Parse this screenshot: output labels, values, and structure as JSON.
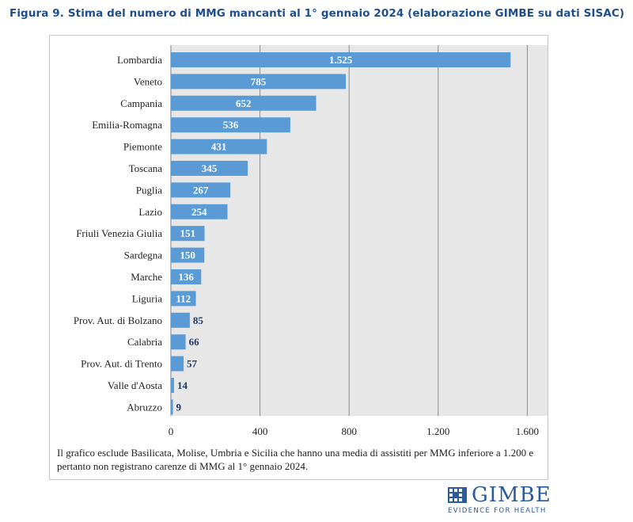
{
  "figure": {
    "title": "Figura 9. Stima del numero di MMG mancanti al 1° gennaio 2024 (elaborazione GIMBE su dati SISAC)",
    "note": "Il grafico esclude Basilicata, Molise, Umbria e Sicilia che hanno una media di assistiti per MMG inferiore a 1.200 e pertanto non registrano carenze di MMG al 1° gennaio 2024."
  },
  "logo": {
    "name": "GIMBE",
    "tagline": "EVIDENCE FOR HEALTH",
    "color": "#2b5b99"
  },
  "colors": {
    "title": "#1f4e8c",
    "bar": "#5b9bd5",
    "plot_background": "#e7e7e7",
    "bar_label": "#ffffff",
    "outside_label": "#1f3864"
  },
  "chart_data": {
    "type": "bar",
    "orientation": "horizontal",
    "categories": [
      "Lombardia",
      "Veneto",
      "Campania",
      "Emilia-Romagna",
      "Piemonte",
      "Toscana",
      "Puglia",
      "Lazio",
      "Friuli Venezia Giulia",
      "Sardegna",
      "Marche",
      "Liguria",
      "Prov. Aut. di Bolzano",
      "Calabria",
      "Prov. Aut. di Trento",
      "Valle d'Aosta",
      "Abruzzo"
    ],
    "values": [
      1525,
      785,
      652,
      536,
      431,
      345,
      267,
      254,
      151,
      150,
      136,
      112,
      85,
      66,
      57,
      14,
      9
    ],
    "data_labels": [
      "1.525",
      "785",
      "652",
      "536",
      "431",
      "345",
      "267",
      "254",
      "151",
      "150",
      "136",
      "112",
      "85",
      "66",
      "57",
      "14",
      "9"
    ],
    "x_ticks": [
      0,
      400,
      800,
      1200,
      1600
    ],
    "x_tick_labels": [
      "0",
      "400",
      "800",
      "1.200",
      "1.600"
    ],
    "xlim": [
      0,
      1600
    ],
    "grid": "vertical",
    "legend": "none"
  }
}
